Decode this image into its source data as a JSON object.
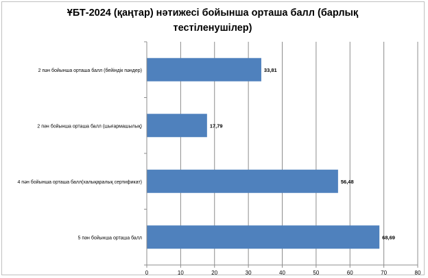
{
  "chart_data": {
    "type": "bar",
    "orientation": "horizontal",
    "title": "ҰБТ-2024  (қаңтар) нәтижесі бойынша орташа балл (барлық тестіленушілер)",
    "categories": [
      "2 пән бойынша орташа балл (бейіндік пәндер)",
      "2 пән бойынша орташа балл (шығармашылық)",
      "4 пән бойынша орташа балл(халықаралық сертификат)",
      "5 пән бойынша орташа балл"
    ],
    "values": [
      33.81,
      17.79,
      56.48,
      68.69
    ],
    "value_labels": [
      "33,81",
      "17,79",
      "56,48",
      "68,69"
    ],
    "x_ticks": [
      "0",
      "10",
      "20",
      "30",
      "40",
      "50",
      "60",
      "70",
      "80"
    ],
    "xlim": [
      0,
      80
    ],
    "grid": true,
    "legend": "none",
    "bar_color": "#4f81bd"
  }
}
